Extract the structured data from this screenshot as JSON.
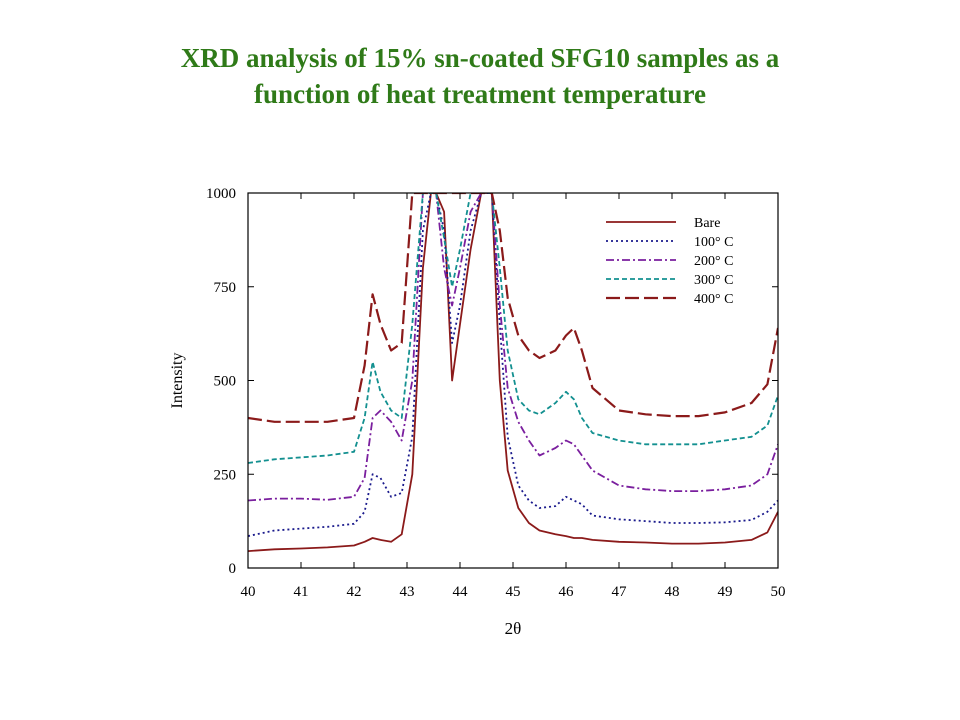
{
  "slide": {
    "title_line1": "XRD analysis of 15% sn-coated SFG10 samples as a",
    "title_line2": "function of heat treatment temperature"
  },
  "chart_data": {
    "type": "line",
    "title": "XRD analysis of 15% sn-coated SFG10 samples as a function of heat treatment temperature",
    "xlabel": "2θ",
    "ylabel": "Intensity",
    "xlim": [
      40,
      50
    ],
    "ylim": [
      0,
      1000
    ],
    "x_ticks": [
      40,
      41,
      42,
      43,
      44,
      45,
      46,
      47,
      48,
      49,
      50
    ],
    "y_ticks": [
      0,
      250,
      500,
      750,
      1000
    ],
    "grid": false,
    "legend_position": "top-right",
    "x": [
      40.0,
      40.5,
      41.0,
      41.5,
      42.0,
      42.2,
      42.35,
      42.5,
      42.7,
      42.9,
      43.1,
      43.3,
      43.45,
      43.55,
      43.7,
      43.85,
      44.0,
      44.2,
      44.4,
      44.6,
      44.75,
      44.9,
      45.1,
      45.3,
      45.5,
      45.8,
      46.0,
      46.15,
      46.3,
      46.5,
      47.0,
      47.5,
      48.0,
      48.5,
      49.0,
      49.5,
      49.8,
      50.0
    ],
    "series": [
      {
        "name": "Bare",
        "color": "#8b1a1a",
        "dash": "solid",
        "values": [
          45,
          50,
          52,
          55,
          60,
          70,
          80,
          75,
          70,
          90,
          250,
          800,
          1000,
          1000,
          950,
          500,
          650,
          850,
          1000,
          1000,
          500,
          260,
          160,
          120,
          100,
          90,
          85,
          80,
          80,
          75,
          70,
          68,
          65,
          65,
          68,
          75,
          95,
          150
        ]
      },
      {
        "name": "100° C",
        "color": "#1a1a8c",
        "dash": "dotted",
        "values": [
          85,
          100,
          105,
          110,
          118,
          150,
          250,
          240,
          190,
          200,
          350,
          900,
          1000,
          1000,
          900,
          600,
          700,
          900,
          1000,
          1000,
          650,
          350,
          220,
          180,
          160,
          165,
          190,
          180,
          170,
          140,
          130,
          125,
          120,
          120,
          122,
          128,
          150,
          180
        ]
      },
      {
        "name": "200° C",
        "color": "#7a1f9e",
        "dash": "dashdot",
        "values": [
          180,
          185,
          185,
          182,
          190,
          240,
          400,
          420,
          390,
          340,
          500,
          1000,
          1000,
          1000,
          800,
          700,
          800,
          950,
          1000,
          1000,
          700,
          480,
          390,
          340,
          300,
          320,
          340,
          330,
          300,
          260,
          220,
          210,
          205,
          205,
          210,
          220,
          250,
          330
        ]
      },
      {
        "name": "300° C",
        "color": "#139090",
        "dash": "dashed",
        "values": [
          280,
          290,
          295,
          300,
          310,
          400,
          550,
          470,
          420,
          400,
          650,
          1000,
          1000,
          1000,
          880,
          750,
          850,
          1000,
          1000,
          1000,
          800,
          580,
          450,
          420,
          410,
          440,
          470,
          450,
          400,
          360,
          340,
          330,
          330,
          330,
          340,
          350,
          380,
          460
        ]
      },
      {
        "name": "400° C",
        "color": "#8b1a1a",
        "dash": "longdash",
        "values": [
          400,
          390,
          390,
          390,
          400,
          540,
          730,
          650,
          580,
          600,
          1000,
          1000,
          1000,
          1000,
          1000,
          1000,
          1000,
          1000,
          1000,
          1000,
          900,
          720,
          620,
          580,
          560,
          580,
          620,
          640,
          580,
          480,
          420,
          410,
          405,
          405,
          415,
          440,
          490,
          640
        ]
      }
    ]
  }
}
